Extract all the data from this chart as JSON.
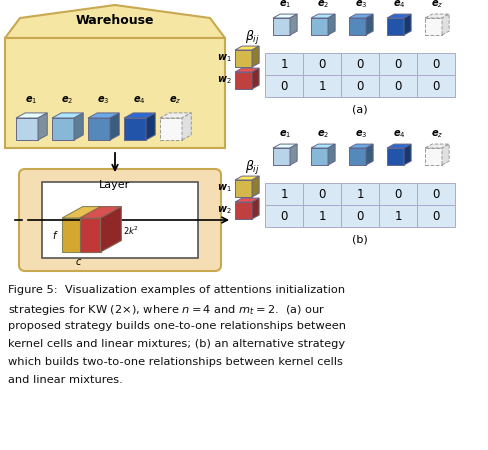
{
  "bg_color": "#ffffff",
  "warehouse_bg": "#f5e6a3",
  "warehouse_border": "#c8a850",
  "layer_outer_bg": "#f5deb3",
  "layer_border": "#c8a850",
  "cube_colors": {
    "c1": "#b8d4e8",
    "c2": "#88b8d8",
    "c3": "#5588bb",
    "c4": "#2255aa",
    "yellow": "#d4b84a",
    "red": "#c04040"
  },
  "table_a_data": [
    [
      1,
      0,
      0,
      0,
      0
    ],
    [
      0,
      1,
      0,
      0,
      0
    ]
  ],
  "table_b_data": [
    [
      1,
      0,
      1,
      0,
      0
    ],
    [
      0,
      1,
      0,
      1,
      0
    ]
  ],
  "col_labels": [
    "e_1",
    "e_2",
    "e_3",
    "e_4",
    "e_z"
  ],
  "row_labels": [
    "w_1",
    "w_2"
  ],
  "table_cell_bg": "#d8e8f5",
  "table_line_color": "#aaaacc",
  "caption_lines": [
    "Figure 5:  Visualization examples of attentions initialization",
    "strategies for KW (2\\times), where $n = 4$ and $m_t = 2$.  (a) our",
    "proposed strategy builds one-to-one relationships between",
    "kernel cells and linear mixtures; (b) an alternative strategy",
    "which builds two-to-one relationships between kernel cells",
    "and linear mixtures."
  ]
}
